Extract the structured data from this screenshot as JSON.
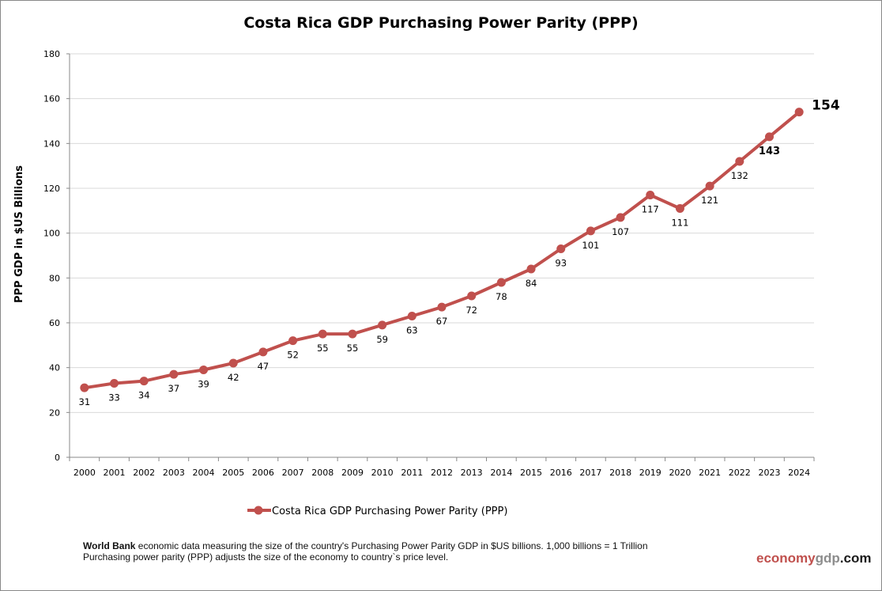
{
  "chart_data": {
    "type": "line",
    "title": "Costa Rica GDP Purchasing Power Parity (PPP)",
    "xlabel": "",
    "ylabel": "PPP GDP in $US Billions",
    "ylim": [
      0,
      180
    ],
    "yticks": [
      0,
      20,
      40,
      60,
      80,
      100,
      120,
      140,
      160,
      180
    ],
    "grid": true,
    "legend_position": "bottom",
    "categories": [
      "2000",
      "2001",
      "2002",
      "2003",
      "2004",
      "2005",
      "2006",
      "2007",
      "2008",
      "2009",
      "2010",
      "2011",
      "2012",
      "2013",
      "2014",
      "2015",
      "2016",
      "2017",
      "2018",
      "2019",
      "2020",
      "2021",
      "2022",
      "2023",
      "2024"
    ],
    "series": [
      {
        "name": "Costa Rica GDP Purchasing Power Parity (PPP)",
        "color": "#c0504d",
        "values": [
          31,
          33,
          34,
          37,
          39,
          42,
          47,
          52,
          55,
          55,
          59,
          63,
          67,
          72,
          78,
          84,
          93,
          101,
          107,
          117,
          111,
          121,
          132,
          143,
          154
        ]
      }
    ]
  },
  "footer": {
    "note_bold": "World Bank",
    "note_line1": " economic data  measuring the size of the country's Purchasing Power Parity GDP in $US billions. 1,000 billions = 1 Trillion",
    "note_line2": "Purchasing power parity (PPP) adjusts the size of the economy to country`s price level.",
    "brand_part1": "economy",
    "brand_part2": "gdp",
    "brand_part3": ".com",
    "brand_colors": [
      "#c0504d",
      "#8c8c8c",
      "#1a1a1a"
    ]
  }
}
